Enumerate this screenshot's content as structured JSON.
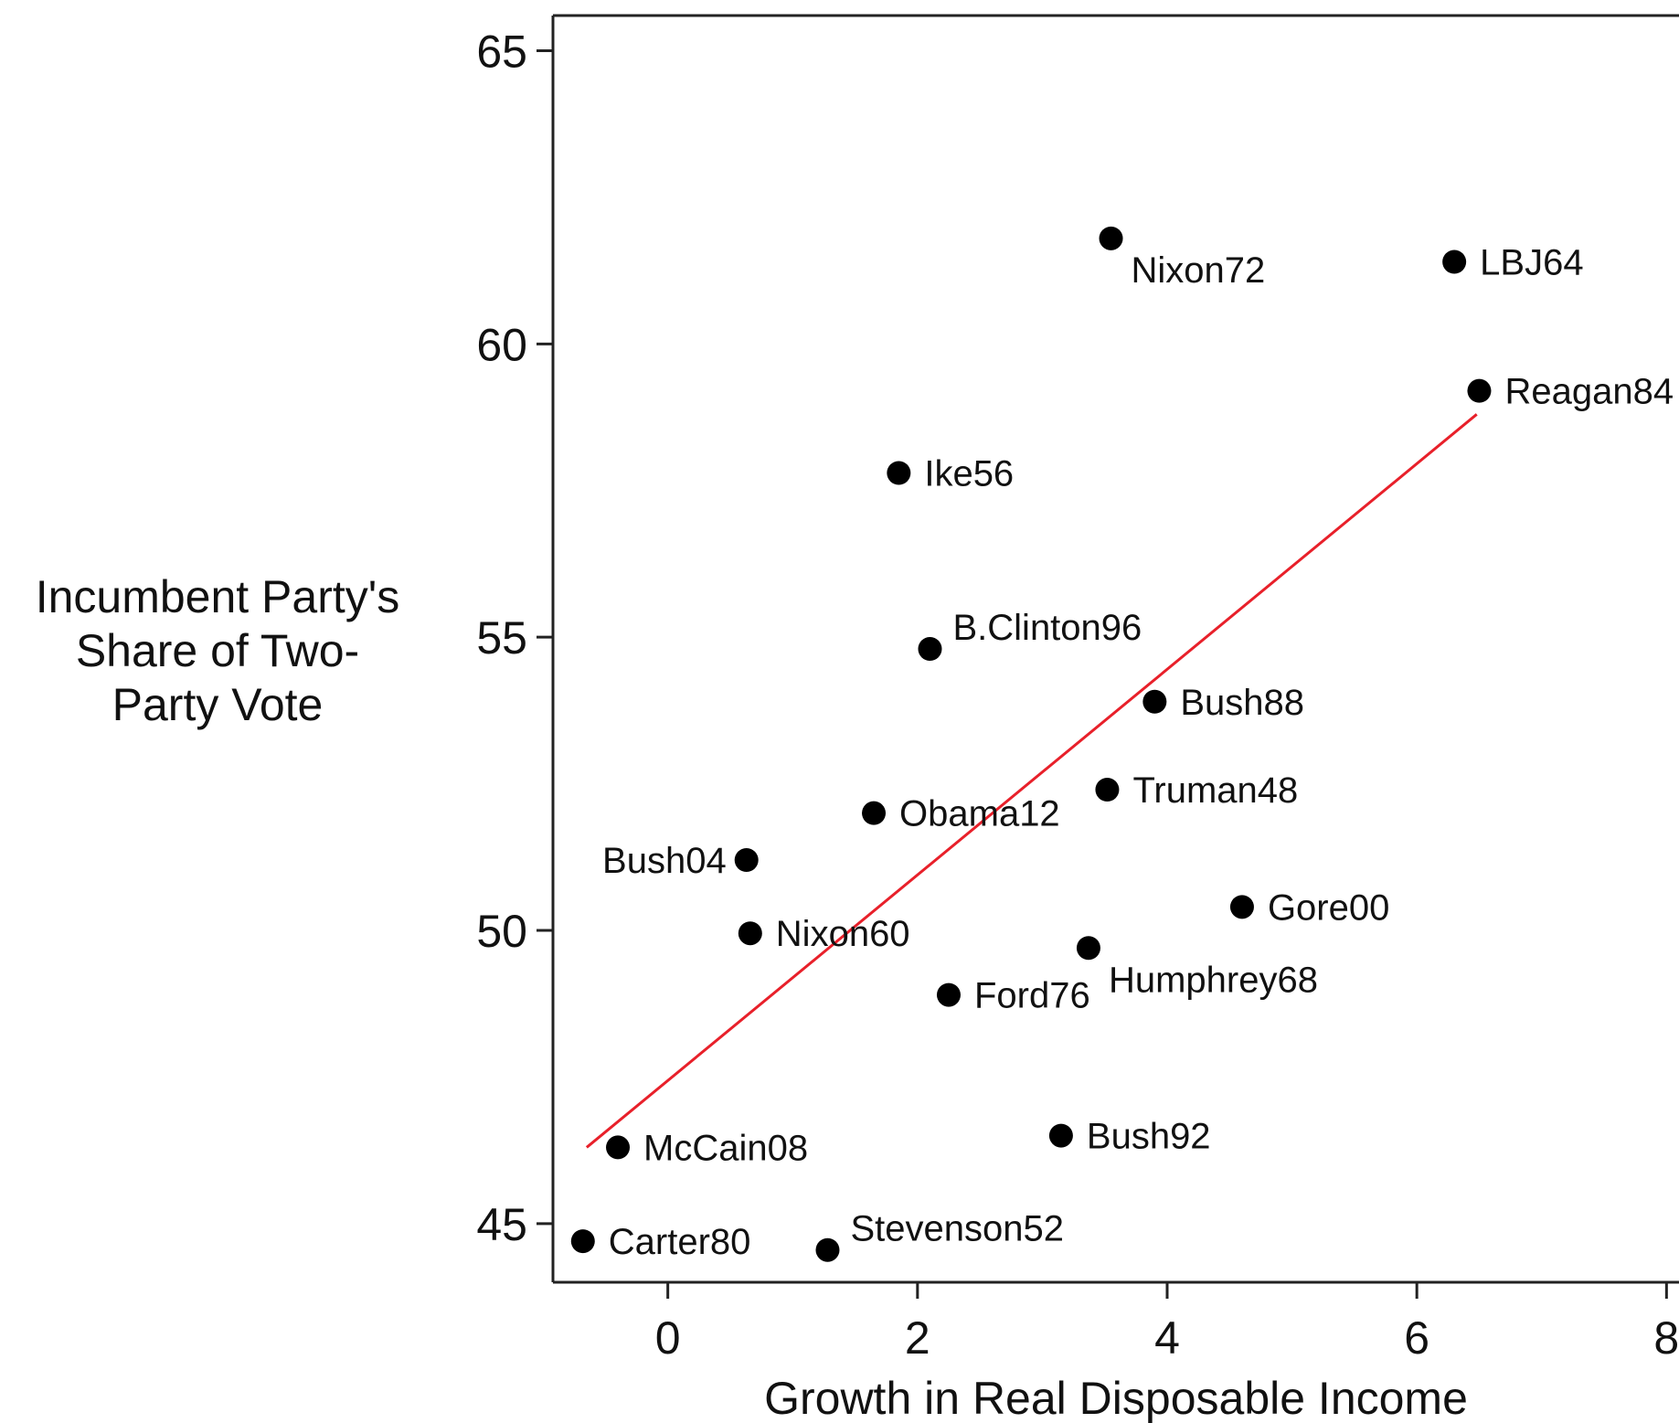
{
  "chart_data": {
    "type": "scatter",
    "title": "",
    "xlabel": "Growth in Real Disposable Income",
    "ylabel": [
      "Incumbent Party's",
      "Share of Two-",
      "Party Vote"
    ],
    "xlim": [
      -0.92,
      8.1
    ],
    "ylim": [
      44.0,
      65.6
    ],
    "xticks": [
      0,
      2,
      4,
      6,
      8
    ],
    "yticks": [
      45,
      50,
      55,
      60,
      65
    ],
    "grid": false,
    "legend": "none",
    "colors": {
      "points": "#000000",
      "fit_line": "#e8202a",
      "axis": "#222222"
    },
    "points": [
      {
        "label": "Nixon72",
        "x": 3.55,
        "y": 61.8,
        "anchor": "below-right"
      },
      {
        "label": "LBJ64",
        "x": 6.3,
        "y": 61.4,
        "anchor": "right"
      },
      {
        "label": "Reagan84",
        "x": 6.5,
        "y": 59.2,
        "anchor": "right"
      },
      {
        "label": "Ike56",
        "x": 1.85,
        "y": 57.8,
        "anchor": "right"
      },
      {
        "label": "B.Clinton96",
        "x": 2.1,
        "y": 54.8,
        "anchor": "above-right"
      },
      {
        "label": "Bush88",
        "x": 3.9,
        "y": 53.9,
        "anchor": "right"
      },
      {
        "label": "Truman48",
        "x": 3.52,
        "y": 52.4,
        "anchor": "right"
      },
      {
        "label": "Obama12",
        "x": 1.65,
        "y": 52.0,
        "anchor": "right"
      },
      {
        "label": "Bush04",
        "x": 0.63,
        "y": 51.2,
        "anchor": "left"
      },
      {
        "label": "Gore00",
        "x": 4.6,
        "y": 50.4,
        "anchor": "right"
      },
      {
        "label": "Nixon60",
        "x": 0.66,
        "y": 49.95,
        "anchor": "right"
      },
      {
        "label": "Humphrey68",
        "x": 3.37,
        "y": 49.7,
        "anchor": "below-right"
      },
      {
        "label": "Ford76",
        "x": 2.25,
        "y": 48.9,
        "anchor": "right"
      },
      {
        "label": "McCain08",
        "x": -0.4,
        "y": 46.3,
        "anchor": "right"
      },
      {
        "label": "Bush92",
        "x": 3.15,
        "y": 46.5,
        "anchor": "right"
      },
      {
        "label": "Carter80",
        "x": -0.68,
        "y": 44.7,
        "anchor": "right"
      },
      {
        "label": "Stevenson52",
        "x": 1.28,
        "y": 44.55,
        "anchor": "above-right"
      }
    ],
    "fit_line": {
      "x": [
        -0.65,
        6.48
      ],
      "y": [
        46.3,
        58.8
      ]
    }
  }
}
